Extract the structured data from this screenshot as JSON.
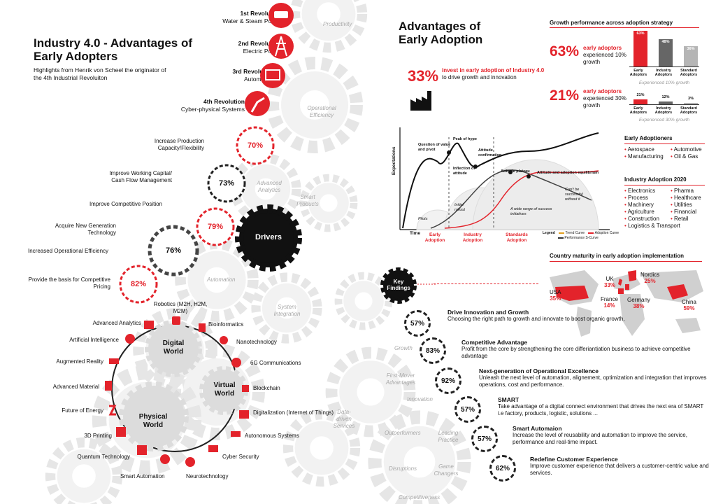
{
  "left": {
    "title": "Industry 4.0 - Advantages of Early Adopters",
    "subtitle": "Highlights from Henrik von Scheel the originator of the 4th Industrial Revoluiton",
    "revolutions": [
      {
        "title": "1st Revolution",
        "desc": "Water & Steam Power"
      },
      {
        "title": "2nd Revolution",
        "desc": "Electric Power"
      },
      {
        "title": "3rd Revolution",
        "desc": "Automation"
      },
      {
        "title": "4th Revolution",
        "desc": "Cyber-physical Systems"
      }
    ],
    "ghost_words": [
      "Productivity",
      "Operational Efficiency",
      "Advanced Analytics",
      "Smart Products",
      "Automation",
      "System Integration"
    ],
    "drivers_label": "Drivers",
    "drivers": [
      {
        "label": "Increase Production Capacity/Flexibility",
        "value": "70%"
      },
      {
        "label": "Improve Working Capital/ Cash Flow Management",
        "value": "73%"
      },
      {
        "label": "Improve Competitive Position",
        "value": "79%"
      },
      {
        "label": "Acquire New Generation Technology",
        "value": "76%"
      },
      {
        "label": "Increased Operational Efficiency",
        "value": ""
      },
      {
        "label": "Provide the basis for Competitive Pricing",
        "value": "82%"
      }
    ],
    "worlds": {
      "digital": "Digital World",
      "virtual": "Virtual World",
      "physical": "Physical World"
    },
    "tech": [
      "Robotics (M2H, H2M, M2M)",
      "Bioinformatics",
      "Nanotechnology",
      "6G Communications",
      "Blockchain",
      "Digitalization (Internet of Things)",
      "Autonomous Systems",
      "Cyber Security",
      "Neurotechnology",
      "Smart Automation",
      "Quantum Technology",
      "3D Printing",
      "Future of Energy",
      "Advanced Material",
      "Augmented Reality",
      "Artificial Intelligence",
      "Advanced Analytics"
    ]
  },
  "right": {
    "title": "Advantages of Early Adoption",
    "invest": {
      "value": "33%",
      "text_red": "invest in early adoption of Industry 4.0",
      "text_rest": " to drive growth and innovation"
    },
    "growth_title": "Growth performance across adoption strategy",
    "growth": [
      {
        "value": "63%",
        "text_red": "early adoptors",
        "text": "experienced 10% growth",
        "bars": [
          {
            "label": "Early Adoptors",
            "value": 63
          },
          {
            "label": "Industry Adoptors",
            "value": 48
          },
          {
            "label": "Standard Adoptors",
            "value": 36
          }
        ],
        "bar_labels": [
          "63%",
          "48%",
          "36%"
        ],
        "note": "Experienced 10% growth"
      },
      {
        "value": "21%",
        "text_red": "early adoptors",
        "text": "experienced 30% growth",
        "bars": [
          {
            "label": "Early Adoptors",
            "value": 21
          },
          {
            "label": "Industry Adoptors",
            "value": 12
          },
          {
            "label": "Standard Adoptors",
            "value": 3
          }
        ],
        "bar_labels": [
          "21%",
          "12%",
          "3%"
        ],
        "note": "Experienced 30% growth"
      }
    ],
    "hype": {
      "y_label": "Expectations",
      "x_label": "Time",
      "phases": [
        "Early Adoption",
        "Industry Adoption",
        "Standards Adoption"
      ],
      "annotations": [
        "Question of value and pivot",
        "Peak of hype",
        "Inflection of attitude",
        "Attitude confirmation",
        "Attitude plateau",
        "Attitude and adoption equilibrium",
        "Can't be successful without it",
        "Pilots",
        "Initial rollout",
        "A wide range of success initiatives"
      ],
      "legend": [
        "Legend",
        "Trend Curve",
        "Adoption Curve",
        "Performance S-Curve"
      ]
    },
    "early_adoptioners": {
      "title": "Early Adoptioners",
      "items": [
        "Aerospace",
        "Automotive",
        "Manufacturing",
        "Oil & Gas"
      ]
    },
    "industry_adoption": {
      "title": "Industry Adoption 2020",
      "items": [
        "Electronics",
        "Pharma",
        "Process",
        "Healthcare",
        "Machinery",
        "Utilities",
        "Agriculture",
        "Financial",
        "Construction",
        "Retail",
        "Logistics & Transport"
      ]
    },
    "maturity_title": "Country maturity in early adoption implementation",
    "countries": [
      {
        "name": "USA",
        "value": "35%"
      },
      {
        "name": "UK",
        "value": "33%"
      },
      {
        "name": "Nordics",
        "value": "25%"
      },
      {
        "name": "France",
        "value": "14%"
      },
      {
        "name": "Germany",
        "value": "38%"
      },
      {
        "name": "China",
        "value": "59%"
      }
    ],
    "key_findings_label": "Key Findings",
    "ghost_words": [
      "Growth",
      "First-Mover Advantages",
      "Innovation",
      "Outperformers",
      "Leading Practice",
      "Disruptions",
      "Game Changers",
      "Data-driven Services",
      "Competitiveness"
    ],
    "findings": [
      {
        "value": "57%",
        "title": "Drive Innovation and Growth",
        "body": "Choosing the right path to growth and innovate to boost organic growth,"
      },
      {
        "value": "83%",
        "title": "Competitive Advantage",
        "body": "Profit from the core by strengthening the core differiantiation business to achieve competitive advantage"
      },
      {
        "value": "92%",
        "title": "Next-generation of Operational Excellence",
        "body": "Unleash the next level of automation, alignement, optimization and integration that improves operations, cost and performance."
      },
      {
        "value": "57%",
        "title": "SMART",
        "body": "Take advantage of a digital connect environment that drives the next era of SMART i.e factory, products, logistic, solutions ..."
      },
      {
        "value": "57%",
        "title": "Smart Automaion",
        "body": "Increase the level of reusability and automation to improve the service, performance and real-time impact."
      },
      {
        "value": "62%",
        "title": "Redefine Customer Experience",
        "body": "Improve customer experience that delivers a customer-centric value and services."
      }
    ]
  },
  "colors": {
    "accent": "#e3232b",
    "dark": "#1a1a1a",
    "grey": "#a8a8a8"
  }
}
